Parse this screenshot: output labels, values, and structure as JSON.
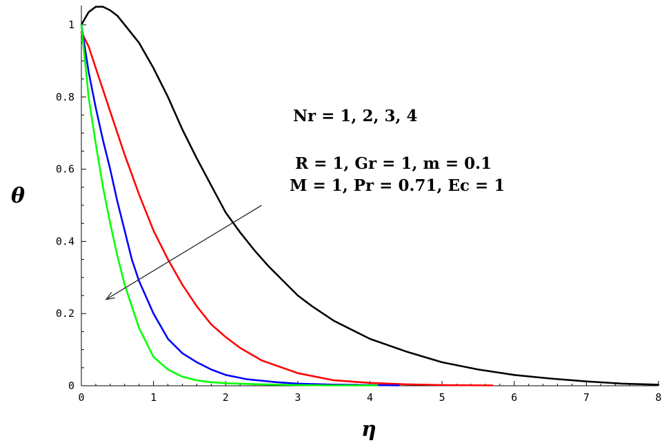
{
  "chart_data": {
    "type": "line",
    "title": "",
    "xlabel": "η",
    "ylabel": "θ",
    "xlim": [
      0,
      8
    ],
    "ylim": [
      0,
      1.05
    ],
    "x_ticks": [
      "0",
      "1",
      "2",
      "3",
      "4",
      "5",
      "6",
      "7",
      "8"
    ],
    "y_ticks": [
      "0",
      "0.2",
      "0.4",
      "0.6",
      "0.8",
      "1"
    ],
    "grid": false,
    "legend": "none",
    "annotations": {
      "parameter": "Nr = 1, 2, 3, 4",
      "fixed_line1": "R = 1, Gr = 1, m = 0.1",
      "fixed_line2": "M = 1, Pr = 0.71, Ec = 1"
    },
    "arrow": {
      "from": [
        2.5,
        0.5
      ],
      "to": [
        0.35,
        0.24
      ],
      "direction": "increasing Nr"
    },
    "series": [
      {
        "color": "#000000",
        "x": [
          0,
          0.1,
          0.2,
          0.3,
          0.4,
          0.5,
          0.6,
          0.8,
          1.0,
          1.2,
          1.4,
          1.6,
          1.8,
          2.0,
          2.2,
          2.4,
          2.6,
          2.8,
          3.0,
          3.2,
          3.5,
          4.0,
          4.5,
          5.0,
          5.5,
          6.0,
          6.5,
          7.0,
          7.5,
          8.0
        ],
        "y": [
          1.0,
          1.035,
          1.05,
          1.05,
          1.04,
          1.025,
          1.0,
          0.95,
          0.88,
          0.8,
          0.71,
          0.63,
          0.555,
          0.48,
          0.425,
          0.375,
          0.33,
          0.29,
          0.25,
          0.22,
          0.18,
          0.13,
          0.095,
          0.065,
          0.045,
          0.03,
          0.02,
          0.012,
          0.006,
          0.003
        ]
      },
      {
        "color": "#ff0000",
        "x": [
          0,
          0.1,
          0.2,
          0.3,
          0.4,
          0.5,
          0.6,
          0.8,
          1.0,
          1.2,
          1.4,
          1.6,
          1.8,
          2.0,
          2.2,
          2.5,
          3.0,
          3.5,
          4.0,
          4.5,
          5.0,
          5.7
        ],
        "y": [
          0.98,
          0.94,
          0.88,
          0.82,
          0.76,
          0.7,
          0.64,
          0.53,
          0.43,
          0.35,
          0.28,
          0.22,
          0.17,
          0.135,
          0.105,
          0.07,
          0.035,
          0.015,
          0.008,
          0.004,
          0.002,
          0.001
        ]
      },
      {
        "color": "#0000ff",
        "x": [
          0,
          0.1,
          0.2,
          0.3,
          0.4,
          0.5,
          0.6,
          0.7,
          0.8,
          1.0,
          1.2,
          1.4,
          1.6,
          1.8,
          2.0,
          2.3,
          2.7,
          3.0,
          3.5,
          4.0,
          4.4
        ],
        "y": [
          1.0,
          0.87,
          0.77,
          0.68,
          0.6,
          0.51,
          0.43,
          0.35,
          0.29,
          0.2,
          0.13,
          0.09,
          0.065,
          0.045,
          0.03,
          0.018,
          0.01,
          0.006,
          0.003,
          0.002,
          0.001
        ]
      },
      {
        "color": "#00ff00",
        "x": [
          0,
          0.1,
          0.2,
          0.3,
          0.4,
          0.5,
          0.6,
          0.7,
          0.8,
          1.0,
          1.2,
          1.4,
          1.6,
          1.8,
          2.0,
          2.5,
          3.0,
          3.5,
          4.1
        ],
        "y": [
          1.0,
          0.8,
          0.67,
          0.55,
          0.45,
          0.36,
          0.28,
          0.22,
          0.16,
          0.08,
          0.045,
          0.025,
          0.015,
          0.01,
          0.007,
          0.004,
          0.002,
          0.001,
          0.001
        ]
      }
    ]
  }
}
